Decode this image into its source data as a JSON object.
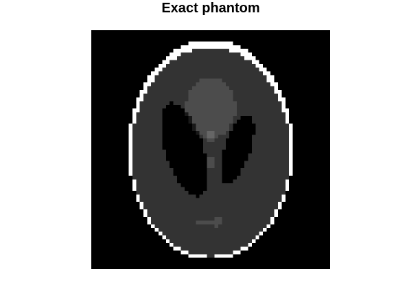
{
  "title": "Exact phantom",
  "image": {
    "grid_size": 64,
    "colormap": "gray",
    "value_range": [
      0,
      1
    ],
    "background_color": "#000000",
    "ellipses": [
      {
        "intensity": 1.0,
        "a": 0.69,
        "b": 0.92,
        "x0": 0.0,
        "y0": 0.0,
        "phi": 0
      },
      {
        "intensity": -0.8,
        "a": 0.6624,
        "b": 0.874,
        "x0": 0.0,
        "y0": -0.0184,
        "phi": 0
      },
      {
        "intensity": -0.2,
        "a": 0.11,
        "b": 0.31,
        "x0": 0.22,
        "y0": 0.0,
        "phi": -18
      },
      {
        "intensity": -0.2,
        "a": 0.16,
        "b": 0.41,
        "x0": -0.22,
        "y0": 0.0,
        "phi": 18
      },
      {
        "intensity": 0.1,
        "a": 0.21,
        "b": 0.25,
        "x0": 0.0,
        "y0": 0.35,
        "phi": 0
      },
      {
        "intensity": 0.1,
        "a": 0.046,
        "b": 0.046,
        "x0": 0.0,
        "y0": 0.1,
        "phi": 0
      },
      {
        "intensity": 0.1,
        "a": 0.046,
        "b": 0.046,
        "x0": 0.0,
        "y0": -0.1,
        "phi": 0
      },
      {
        "intensity": 0.1,
        "a": 0.046,
        "b": 0.023,
        "x0": -0.08,
        "y0": -0.605,
        "phi": 0
      },
      {
        "intensity": 0.1,
        "a": 0.023,
        "b": 0.023,
        "x0": 0.0,
        "y0": -0.606,
        "phi": 0
      },
      {
        "intensity": 0.1,
        "a": 0.023,
        "b": 0.046,
        "x0": 0.06,
        "y0": -0.605,
        "phi": 0
      }
    ]
  }
}
